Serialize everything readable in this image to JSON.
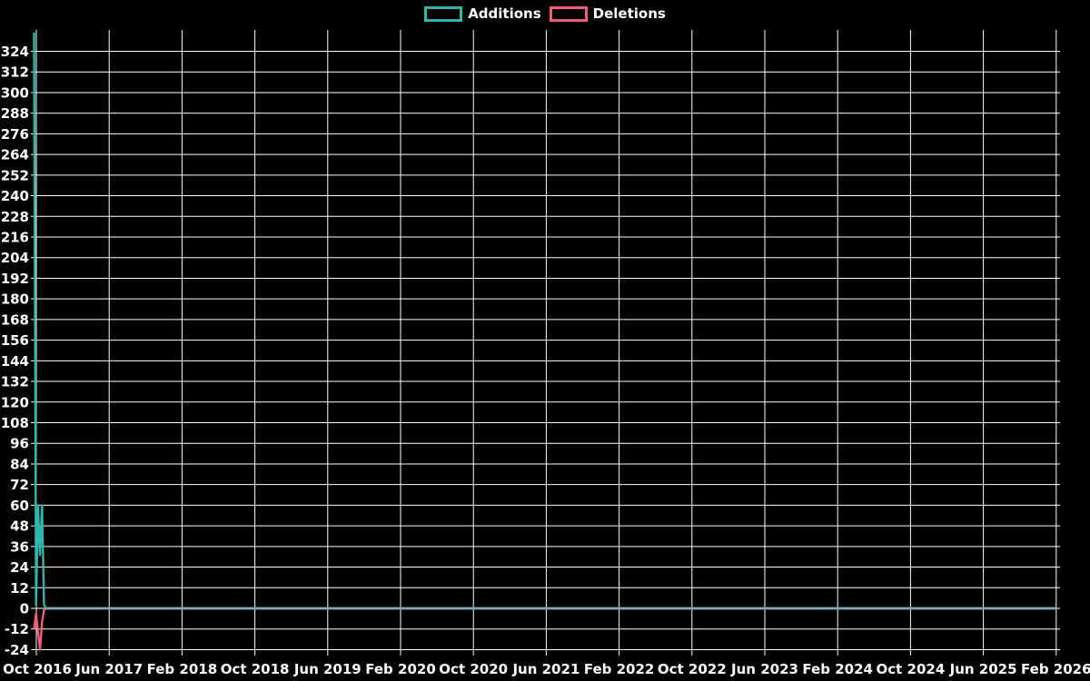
{
  "page": {
    "background_color": "#000000",
    "text_color": "#ffffff",
    "grid_color": "#ffffff"
  },
  "legend": {
    "items": [
      {
        "label": "Additions",
        "color": "#32b5ac"
      },
      {
        "label": "Deletions",
        "color": "#f25c78"
      }
    ]
  },
  "chart_data": {
    "type": "line",
    "title": "",
    "xlabel": "",
    "ylabel": "",
    "grid": "on",
    "legend_position": "top-center",
    "x_axis": {
      "start": "Oct 2016",
      "end": "Feb 2026",
      "tick_interval_months": 8,
      "tick_labels": [
        "Oct 2016",
        "Jun 2017",
        "Feb 2018",
        "Oct 2018",
        "Jun 2019",
        "Feb 2020",
        "Oct 2020",
        "Jun 2021",
        "Feb 2022",
        "Oct 2022",
        "Jun 2023",
        "Feb 2024",
        "Oct 2024",
        "Jun 2025",
        "Feb 2026"
      ]
    },
    "y_axis": {
      "step": 12,
      "tick_labels": [
        324,
        312,
        300,
        288,
        276,
        264,
        252,
        240,
        228,
        216,
        204,
        192,
        180,
        168,
        156,
        144,
        132,
        120,
        108,
        96,
        84,
        72,
        60,
        48,
        36,
        24,
        12,
        0,
        -12,
        -24
      ],
      "visible_min": -29,
      "visible_max": 336
    },
    "series": [
      {
        "name": "Additions",
        "color": "#32b5ac",
        "note": "weekly points starting late Sep 2016; flat at 0 afterwards through Feb 2026",
        "points_weekly": [
          [
            0,
            335
          ],
          [
            1,
            2
          ],
          [
            2,
            60
          ],
          [
            3,
            31
          ],
          [
            4,
            60
          ],
          [
            5,
            2
          ],
          [
            6,
            0
          ],
          [
            7,
            0
          ]
        ]
      },
      {
        "name": "Deletions",
        "color": "#f25c78",
        "note": "weekly points starting late Sep 2016; flat at 0 afterwards through Feb 2026",
        "points_weekly": [
          [
            0,
            -12
          ],
          [
            1,
            -3
          ],
          [
            2,
            -14
          ],
          [
            3,
            -24
          ],
          [
            4,
            -8
          ],
          [
            5,
            -1
          ],
          [
            6,
            0
          ],
          [
            7,
            0
          ]
        ]
      }
    ],
    "zero_line_overlap_color": "#84a8b4"
  }
}
